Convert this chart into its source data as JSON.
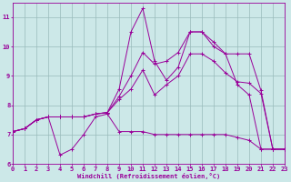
{
  "xlabel": "Windchill (Refroidissement éolien,°C)",
  "xlim": [
    0,
    23
  ],
  "ylim": [
    6,
    11.5
  ],
  "yticks": [
    6,
    7,
    8,
    9,
    10,
    11
  ],
  "xticks": [
    0,
    1,
    2,
    3,
    4,
    5,
    6,
    7,
    8,
    9,
    10,
    11,
    12,
    13,
    14,
    15,
    16,
    17,
    18,
    19,
    20,
    21,
    22,
    23
  ],
  "bg_color": "#cce8e8",
  "line_color": "#990099",
  "grid_color": "#99bbbb",
  "lines": [
    {
      "x": [
        0,
        1,
        2,
        3,
        4,
        5,
        6,
        7,
        8,
        9,
        10,
        11,
        12,
        13,
        14,
        15,
        16,
        17,
        18,
        19,
        20,
        21,
        22,
        23
      ],
      "y": [
        7.1,
        7.2,
        7.5,
        7.6,
        6.3,
        6.5,
        7.0,
        7.6,
        7.7,
        7.1,
        7.1,
        7.1,
        7.0,
        7.0,
        7.0,
        7.0,
        7.0,
        7.0,
        7.0,
        6.9,
        6.8,
        6.5,
        6.5,
        6.5
      ]
    },
    {
      "x": [
        0,
        1,
        2,
        3,
        4,
        5,
        6,
        7,
        8,
        9,
        10,
        11,
        12,
        13,
        14,
        15,
        16,
        17,
        18,
        19,
        20,
        21,
        22,
        23
      ],
      "y": [
        7.1,
        7.2,
        7.5,
        7.6,
        7.6,
        7.6,
        7.6,
        7.7,
        7.75,
        8.55,
        10.5,
        11.3,
        9.5,
        8.85,
        9.3,
        10.5,
        10.5,
        10.0,
        9.75,
        8.7,
        8.35,
        6.5,
        6.5,
        6.5
      ]
    },
    {
      "x": [
        0,
        1,
        2,
        3,
        4,
        5,
        6,
        7,
        8,
        9,
        10,
        11,
        12,
        13,
        14,
        15,
        16,
        17,
        18,
        19,
        20,
        21,
        22,
        23
      ],
      "y": [
        7.1,
        7.2,
        7.5,
        7.6,
        7.6,
        7.6,
        7.6,
        7.7,
        7.75,
        8.3,
        9.0,
        9.8,
        9.4,
        9.5,
        9.8,
        10.5,
        10.5,
        10.15,
        9.75,
        9.75,
        9.75,
        8.5,
        6.5,
        6.5
      ]
    },
    {
      "x": [
        0,
        1,
        2,
        3,
        4,
        5,
        6,
        7,
        8,
        9,
        10,
        11,
        12,
        13,
        14,
        15,
        16,
        17,
        18,
        19,
        20,
        21,
        22,
        23
      ],
      "y": [
        7.1,
        7.2,
        7.5,
        7.6,
        7.6,
        7.6,
        7.6,
        7.7,
        7.75,
        8.2,
        8.55,
        9.2,
        8.35,
        8.7,
        9.0,
        9.75,
        9.75,
        9.5,
        9.1,
        8.8,
        8.75,
        8.4,
        6.5,
        6.5
      ]
    }
  ]
}
